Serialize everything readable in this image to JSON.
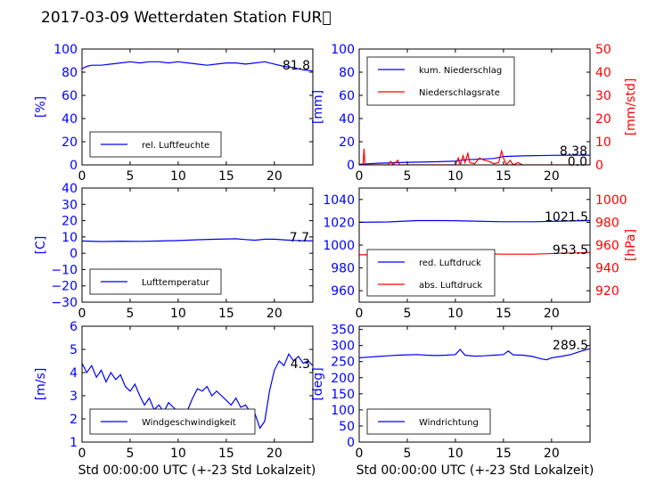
{
  "figure": {
    "title": "2017-03-09 Wetterdaten Station FUR\u0000",
    "xlabel": "Std 00:00:00 UTC (+-23 Std Lokalzeit)",
    "colors": {
      "primary": "#0000ff",
      "secondary": "#ff0000",
      "faded": "#8080ff",
      "axis": "#000000"
    }
  },
  "chart_data": [
    {
      "id": "humidity",
      "type": "line",
      "xlim": [
        0,
        24
      ],
      "ylim": [
        0,
        100
      ],
      "yticks": [
        0,
        20,
        40,
        60,
        80,
        100
      ],
      "xticks": [
        0,
        5,
        10,
        15,
        20
      ],
      "ylabel": "[%]",
      "series": [
        {
          "name": "rel. Luftfeuchte",
          "color": "#0000ff",
          "points": [
            [
              0,
              83
            ],
            [
              0.5,
              85
            ],
            [
              1,
              86
            ],
            [
              2,
              86
            ],
            [
              3,
              87
            ],
            [
              4,
              88
            ],
            [
              5,
              89
            ],
            [
              6,
              88
            ],
            [
              7,
              89
            ],
            [
              8,
              89
            ],
            [
              9,
              88
            ],
            [
              10,
              89
            ],
            [
              11,
              88
            ],
            [
              12,
              87
            ],
            [
              13,
              86
            ],
            [
              14,
              87
            ],
            [
              15,
              88
            ],
            [
              16,
              88
            ],
            [
              17,
              87
            ],
            [
              18,
              88
            ],
            [
              19,
              89
            ],
            [
              20,
              87
            ],
            [
              21,
              85
            ],
            [
              22,
              84
            ],
            [
              23,
              82
            ],
            [
              24,
              81
            ]
          ]
        }
      ],
      "annotation": "81.8",
      "legend": "lower-left"
    },
    {
      "id": "precip",
      "type": "line",
      "xlim": [
        0,
        24
      ],
      "ylim": [
        0,
        100
      ],
      "yticks": [
        0,
        20,
        40,
        60,
        80,
        100
      ],
      "xticks": [
        0,
        5,
        10,
        15,
        20
      ],
      "ylabel": "[mm]",
      "y2lim": [
        0,
        50
      ],
      "y2ticks": [
        0,
        10,
        20,
        30,
        40,
        50
      ],
      "y2label": "[mm/std]",
      "series": [
        {
          "name": "kum. Niederschlag",
          "color": "#0000ff",
          "axis": "left",
          "points": [
            [
              0,
              0.5
            ],
            [
              2,
              1.5
            ],
            [
              5,
              2.2
            ],
            [
              8,
              2.7
            ],
            [
              10,
              3.2
            ],
            [
              11,
              4.5
            ],
            [
              12,
              4.8
            ],
            [
              14,
              5.5
            ],
            [
              15,
              7.2
            ],
            [
              17,
              7.8
            ],
            [
              20,
              8.2
            ],
            [
              22,
              8.38
            ],
            [
              24,
              8.38
            ]
          ]
        },
        {
          "name": "Niederschlagsrate",
          "color": "#ff0000",
          "axis": "right",
          "points": [
            [
              0,
              0
            ],
            [
              0.4,
              0
            ],
            [
              0.5,
              7
            ],
            [
              0.6,
              0
            ],
            [
              1,
              0
            ],
            [
              3,
              0
            ],
            [
              3.3,
              1.5
            ],
            [
              3.5,
              0
            ],
            [
              4,
              2
            ],
            [
              4.2,
              0
            ],
            [
              10,
              0
            ],
            [
              10.3,
              3
            ],
            [
              10.5,
              0
            ],
            [
              10.8,
              4
            ],
            [
              11,
              1
            ],
            [
              11.3,
              5
            ],
            [
              11.5,
              1
            ],
            [
              12,
              0.5
            ],
            [
              12.5,
              3
            ],
            [
              13,
              2
            ],
            [
              13.5,
              1.5
            ],
            [
              14,
              0.5
            ],
            [
              14.5,
              1
            ],
            [
              14.8,
              6
            ],
            [
              15,
              3
            ],
            [
              15.3,
              0
            ],
            [
              15.7,
              2
            ],
            [
              16,
              0
            ],
            [
              16.5,
              1
            ],
            [
              17,
              0
            ],
            [
              24,
              0
            ]
          ]
        }
      ],
      "annotations": [
        "8.38",
        "0.0"
      ],
      "legend": "upper-left"
    },
    {
      "id": "temperature",
      "type": "line",
      "xlim": [
        0,
        24
      ],
      "ylim": [
        -30,
        40
      ],
      "yticks": [
        -30,
        -20,
        -10,
        0,
        10,
        20,
        30,
        40
      ],
      "xticks": [
        0,
        5,
        10,
        15,
        20
      ],
      "ylabel": "[C]",
      "series": [
        {
          "name": "Lufttemperatur",
          "color": "#0000ff",
          "points": [
            [
              0,
              7.5
            ],
            [
              2,
              7.2
            ],
            [
              4,
              7.4
            ],
            [
              6,
              7.3
            ],
            [
              8,
              7.5
            ],
            [
              10,
              7.8
            ],
            [
              12,
              8.3
            ],
            [
              14,
              8.6
            ],
            [
              16,
              8.9
            ],
            [
              17,
              8.4
            ],
            [
              18,
              8.0
            ],
            [
              19,
              8.6
            ],
            [
              20,
              8.6
            ],
            [
              21,
              8.2
            ],
            [
              22,
              7.9
            ],
            [
              23,
              7.7
            ],
            [
              24,
              7.7
            ]
          ]
        }
      ],
      "annotation": "7.7",
      "legend": "lower-left"
    },
    {
      "id": "pressure",
      "type": "line",
      "xlim": [
        0,
        24
      ],
      "ylim": [
        950,
        1050
      ],
      "yticks": [
        960,
        980,
        1000,
        1020,
        1040
      ],
      "xticks": [
        0,
        5,
        10,
        15,
        20
      ],
      "y2lim": [
        910,
        1010
      ],
      "y2ticks": [
        920,
        940,
        960,
        980,
        1000
      ],
      "y2label": "[hPa]",
      "series": [
        {
          "name": "red. Luftdruck",
          "color": "#0000ff",
          "axis": "left",
          "points": [
            [
              0,
              1020
            ],
            [
              3,
              1020.3
            ],
            [
              6,
              1021.5
            ],
            [
              9,
              1021.5
            ],
            [
              12,
              1021
            ],
            [
              15,
              1020.5
            ],
            [
              18,
              1020.5
            ],
            [
              21,
              1021
            ],
            [
              24,
              1021.5
            ]
          ]
        },
        {
          "name": "abs. Luftdruck",
          "color": "#ff0000",
          "axis": "right",
          "points": [
            [
              0,
              951.5
            ],
            [
              3,
              951.8
            ],
            [
              6,
              953
            ],
            [
              9,
              953
            ],
            [
              12,
              952.5
            ],
            [
              15,
              952
            ],
            [
              18,
              952
            ],
            [
              21,
              952.8
            ],
            [
              24,
              953.5
            ]
          ]
        }
      ],
      "annotations": [
        "1021.5",
        "953.5"
      ],
      "legend": "lower-left"
    },
    {
      "id": "windspeed",
      "type": "line",
      "xlim": [
        0,
        24
      ],
      "ylim": [
        1,
        6
      ],
      "yticks": [
        1,
        2,
        3,
        4,
        5,
        6
      ],
      "xticks": [
        0,
        5,
        10,
        15,
        20
      ],
      "ylabel": "[m/s]",
      "series": [
        {
          "name": "Windgeschwindigkeit",
          "color": "#0000ff",
          "points": [
            [
              0,
              4.4
            ],
            [
              0.5,
              4.0
            ],
            [
              1,
              4.3
            ],
            [
              1.5,
              3.8
            ],
            [
              2,
              4.1
            ],
            [
              2.5,
              3.6
            ],
            [
              3,
              4.0
            ],
            [
              3.5,
              3.7
            ],
            [
              4,
              3.9
            ],
            [
              4.5,
              3.4
            ],
            [
              5,
              3.2
            ],
            [
              5.5,
              3.5
            ],
            [
              6,
              3.0
            ],
            [
              6.5,
              2.6
            ],
            [
              7,
              2.9
            ],
            [
              7.5,
              2.4
            ],
            [
              8,
              2.6
            ],
            [
              8.5,
              2.3
            ],
            [
              9,
              2.7
            ],
            [
              9.5,
              2.5
            ],
            [
              10,
              2.3
            ],
            [
              10.5,
              1.8
            ],
            [
              11,
              2.4
            ],
            [
              11.5,
              2.9
            ],
            [
              12,
              3.3
            ],
            [
              12.5,
              3.2
            ],
            [
              13,
              3.4
            ],
            [
              13.5,
              3.0
            ],
            [
              14,
              3.2
            ],
            [
              14.5,
              3.0
            ],
            [
              15,
              2.8
            ],
            [
              15.5,
              2.6
            ],
            [
              16,
              2.9
            ],
            [
              16.5,
              2.5
            ],
            [
              17,
              2.6
            ],
            [
              17.5,
              2.3
            ],
            [
              18,
              2.2
            ],
            [
              18.5,
              1.6
            ],
            [
              19,
              1.9
            ],
            [
              19.5,
              3.2
            ],
            [
              20,
              4.1
            ],
            [
              20.5,
              4.5
            ],
            [
              21,
              4.3
            ],
            [
              21.5,
              4.8
            ],
            [
              22,
              4.5
            ],
            [
              22.5,
              4.7
            ],
            [
              23,
              4.4
            ],
            [
              23.5,
              4.5
            ],
            [
              24,
              4.3
            ]
          ]
        }
      ],
      "annotation": "4.3",
      "legend": "lower-left"
    },
    {
      "id": "winddir",
      "type": "line",
      "xlim": [
        0,
        24
      ],
      "ylim": [
        0,
        360
      ],
      "yticks": [
        0,
        50,
        100,
        150,
        200,
        250,
        300,
        350
      ],
      "xticks": [
        0,
        5,
        10,
        15,
        20
      ],
      "ylabel": "[deg]",
      "series": [
        {
          "name": "Windrichtung",
          "color": "#0000ff",
          "points": [
            [
              0,
              262
            ],
            [
              1,
              264
            ],
            [
              2,
              266
            ],
            [
              3,
              268
            ],
            [
              4,
              270
            ],
            [
              5,
              271
            ],
            [
              6,
              272
            ],
            [
              7,
              270
            ],
            [
              8,
              269
            ],
            [
              9,
              270
            ],
            [
              10,
              272
            ],
            [
              10.5,
              288
            ],
            [
              11,
              270
            ],
            [
              12,
              267
            ],
            [
              13,
              268
            ],
            [
              14,
              270
            ],
            [
              15,
              272
            ],
            [
              15.5,
              283
            ],
            [
              16,
              271
            ],
            [
              17,
              270
            ],
            [
              18,
              266
            ],
            [
              19,
              258
            ],
            [
              19.5,
              256
            ],
            [
              20,
              262
            ],
            [
              21,
              266
            ],
            [
              22,
              272
            ],
            [
              23,
              282
            ],
            [
              24,
              290
            ]
          ]
        }
      ],
      "annotation": "289.5",
      "legend": "lower-left"
    }
  ]
}
